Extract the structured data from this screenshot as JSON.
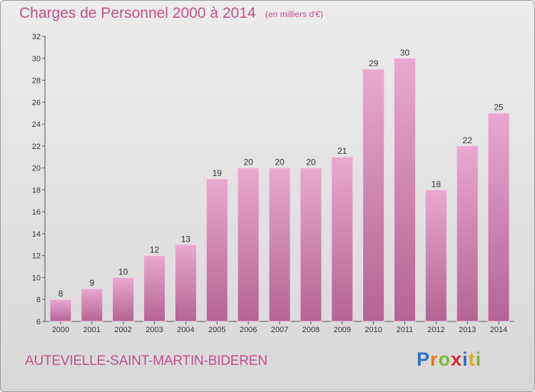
{
  "title": "Charges de Personnel 2000 à 2014",
  "subtitle": "(en milliers d'€)",
  "commune": "AUTEVIELLE-SAINT-MARTIN-BIDEREN",
  "logo": {
    "letters": [
      "P",
      "r",
      "o",
      "x",
      "i",
      "t",
      "i"
    ],
    "colors": [
      "#2f6fc6",
      "#e3781e",
      "#7cb82f",
      "#d6252e",
      "#2f6fc6",
      "#e3a61e",
      "#7cb82f"
    ]
  },
  "colors": {
    "bar_top": "#e9a8cf",
    "bar_bottom": "#b36494",
    "text_accent": "#c2508a"
  },
  "chart_data": {
    "type": "bar",
    "categories": [
      "2000",
      "2001",
      "2002",
      "2003",
      "2004",
      "2005",
      "2006",
      "2007",
      "2008",
      "2009",
      "2010",
      "2011",
      "2012",
      "2013",
      "2014"
    ],
    "values": [
      8,
      9,
      10,
      12,
      13,
      19,
      20,
      20,
      20,
      21,
      29,
      30,
      18,
      22,
      25
    ],
    "ylim": [
      6,
      32
    ],
    "yticks": [
      6,
      8,
      10,
      12,
      14,
      16,
      18,
      20,
      22,
      24,
      26,
      28,
      30,
      32
    ],
    "grid": false,
    "data_labels": true
  }
}
